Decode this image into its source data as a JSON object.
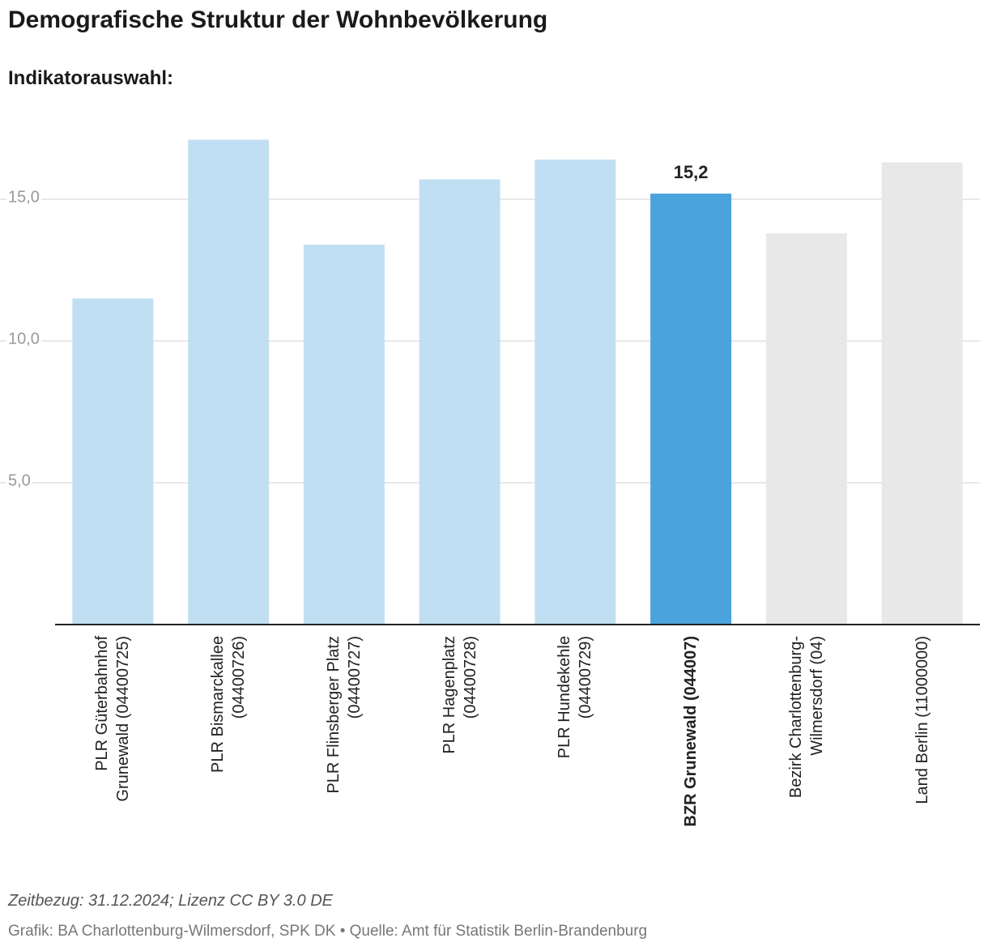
{
  "chart_data": {
    "type": "bar",
    "title": "Demografische Struktur der Wohnbevölkerung",
    "subtitle": "Indikatorauswahl:",
    "categories": [
      "PLR Güterbahnhof\nGrunewald (04400725)",
      "PLR Bismarckallee\n(04400726)",
      "PLR Flinsberger Platz\n(04400727)",
      "PLR Hagenplatz\n(04400728)",
      "PLR Hundekehle\n(04400729)",
      "BZR Grunewald (044007)",
      "Bezirk Charlottenburg-\nWilmersdorf (04)",
      "Land Berlin (11000000)"
    ],
    "values": [
      11.5,
      17.1,
      13.4,
      15.7,
      16.4,
      15.2,
      13.8,
      16.3
    ],
    "value_labels": [
      null,
      null,
      null,
      null,
      null,
      "15,2",
      null,
      null
    ],
    "colors": [
      "#c1dff2",
      "#c1dff2",
      "#c1dff2",
      "#c1dff2",
      "#c1dff2",
      "#4ba3dd",
      "#e8e8e8",
      "#e8e8e8"
    ],
    "highlight": 5,
    "ylim": [
      0,
      18
    ],
    "yticks": [
      {
        "value": 5,
        "label": "5,0"
      },
      {
        "value": 10,
        "label": "10,0"
      },
      {
        "value": 15,
        "label": "15,0"
      }
    ],
    "grid": true,
    "notes": [
      "Zeitbezug: 31.12.2024; Lizenz CC BY 3.0 DE",
      "Grafik: BA Charlottenburg-Wilmersdorf, SPK DK • Quelle: Amt für Statistik Berlin-Brandenburg"
    ]
  }
}
